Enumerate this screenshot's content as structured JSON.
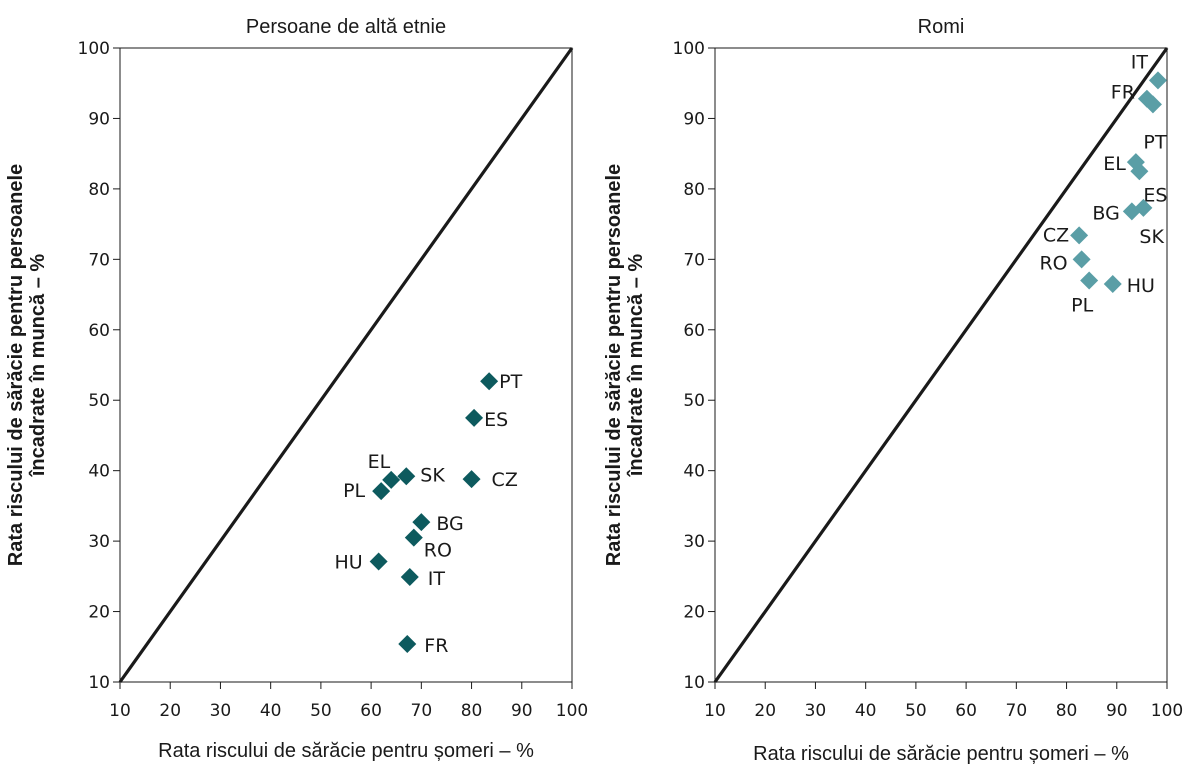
{
  "chart_data": [
    {
      "type": "scatter",
      "title": "Persoane de altă etnie",
      "xlabel": "Rata riscului de sărăcie pentru șomeri – %",
      "ylabel": [
        "Rata riscului de sărăcie pentru persoanele",
        "încadrate în muncă – %"
      ],
      "xlim": [
        10,
        100
      ],
      "ylim": [
        10,
        100
      ],
      "xticks": [
        10,
        20,
        30,
        40,
        50,
        60,
        70,
        80,
        90,
        100
      ],
      "yticks": [
        10,
        20,
        30,
        40,
        50,
        60,
        70,
        80,
        90,
        100
      ],
      "grid": false,
      "reference_line": "y = x",
      "marker_color": "#0d5a5e",
      "points": [
        {
          "label": "PT",
          "x": 83.5,
          "y": 52.7
        },
        {
          "label": "ES",
          "x": 80.5,
          "y": 47.5
        },
        {
          "label": "EL",
          "x": 64,
          "y": 38.7
        },
        {
          "label": "SK",
          "x": 67,
          "y": 39.2
        },
        {
          "label": "PL",
          "x": 62,
          "y": 37.1
        },
        {
          "label": "CZ",
          "x": 80,
          "y": 38.8
        },
        {
          "label": "BG",
          "x": 70,
          "y": 32.7
        },
        {
          "label": "RO",
          "x": 68.5,
          "y": 30.5
        },
        {
          "label": "HU",
          "x": 61.5,
          "y": 27.1
        },
        {
          "label": "IT",
          "x": 67.7,
          "y": 24.9
        },
        {
          "label": "FR",
          "x": 67.2,
          "y": 15.4
        }
      ]
    },
    {
      "type": "scatter",
      "title": "Romi",
      "xlabel": "Rata riscului de sărăcie pentru șomeri – %",
      "ylabel": [
        "Rata riscului de sărăcie pentru persoanele",
        "încadrate în muncă – %"
      ],
      "xlim": [
        10,
        100
      ],
      "ylim": [
        10,
        100
      ],
      "xticks": [
        10,
        20,
        30,
        40,
        50,
        60,
        70,
        80,
        90,
        100
      ],
      "yticks": [
        10,
        20,
        30,
        40,
        50,
        60,
        70,
        80,
        90,
        100
      ],
      "grid": false,
      "reference_line": "y = x",
      "marker_color": "#5a9ea6",
      "points": [
        {
          "label": "IT",
          "x": 98.2,
          "y": 95.4
        },
        {
          "label": "FR",
          "x": 96,
          "y": 92.8
        },
        {
          "label": "PT",
          "x": 97.2,
          "y": 92
        },
        {
          "label": "EL",
          "x": 93.8,
          "y": 83.8
        },
        {
          "label": "ES",
          "x": 94.5,
          "y": 82.5
        },
        {
          "label": "BG",
          "x": 93,
          "y": 76.8
        },
        {
          "label": "SK",
          "x": 95.3,
          "y": 77.3
        },
        {
          "label": "CZ",
          "x": 82.5,
          "y": 73.4
        },
        {
          "label": "RO",
          "x": 83,
          "y": 70
        },
        {
          "label": "PL",
          "x": 84.5,
          "y": 67
        },
        {
          "label": "HU",
          "x": 89.2,
          "y": 66.5
        }
      ]
    }
  ]
}
